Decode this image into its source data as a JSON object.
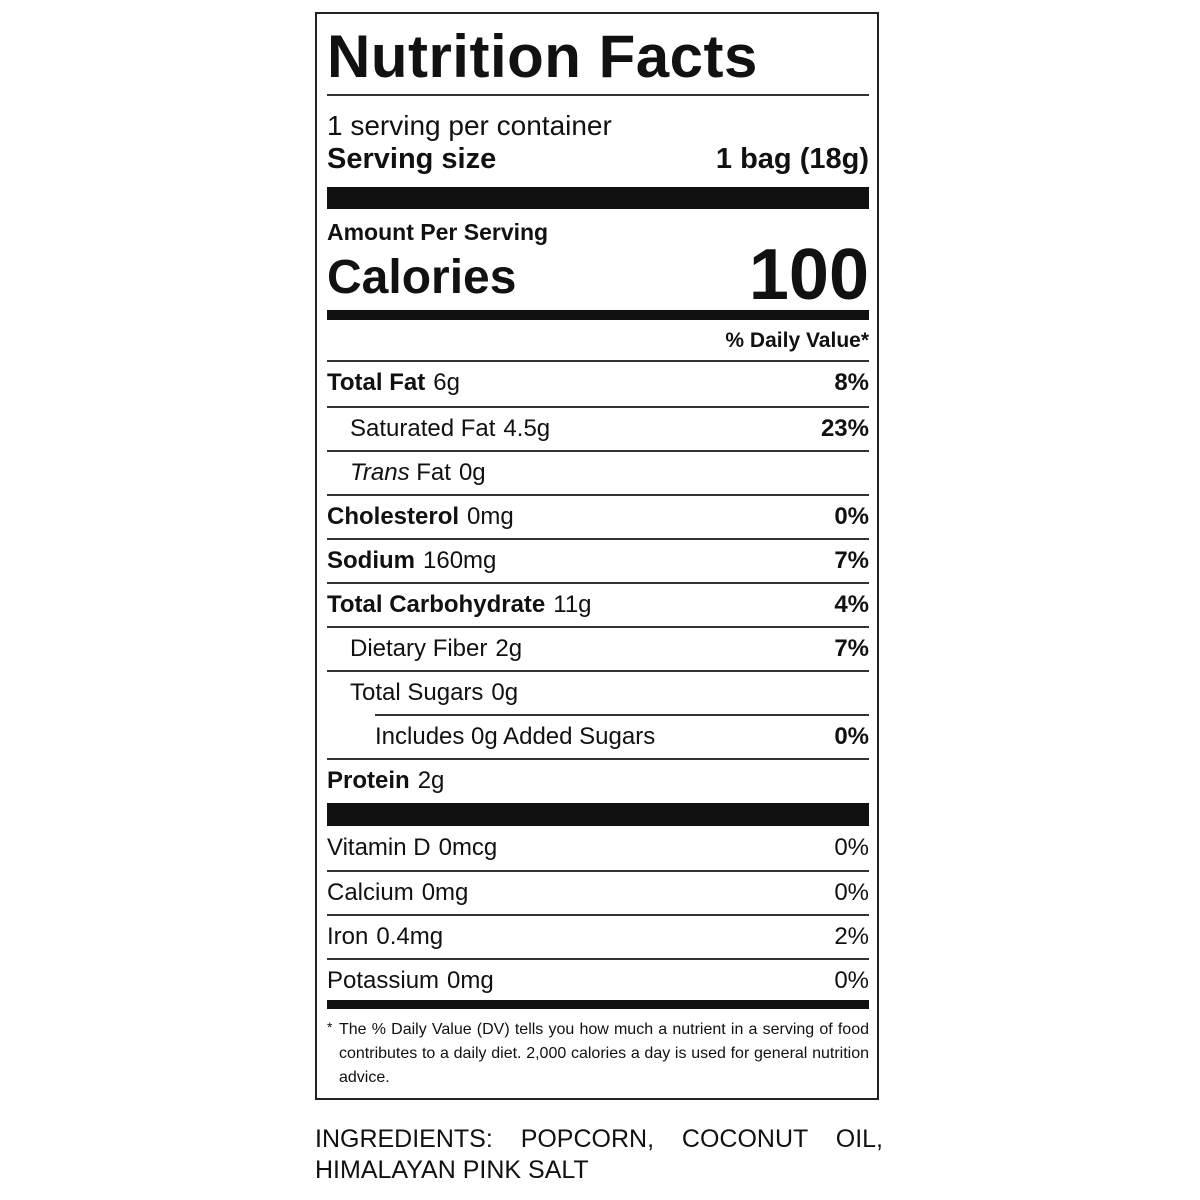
{
  "label": {
    "title": "Nutrition Facts",
    "servings": "1 serving per container",
    "serving_size": {
      "label": "Serving size",
      "value": "1 bag (18g)"
    },
    "amount_per_serving": "Amount Per Serving",
    "calories": {
      "label": "Calories",
      "value": "100"
    },
    "dv_header": "% Daily Value*",
    "nutrients": [
      {
        "name": "Total Fat",
        "amount": "6g",
        "dv": "8%"
      },
      {
        "name": "Saturated Fat",
        "amount": "4.5g",
        "dv": "23%"
      },
      {
        "name_italic": "Trans",
        "name": "Fat",
        "amount": "0g"
      },
      {
        "name": "Cholesterol",
        "amount": "0mg",
        "dv": "0%"
      },
      {
        "name": "Sodium",
        "amount": "160mg",
        "dv": "7%"
      },
      {
        "name": "Total Carbohydrate",
        "amount": "11g",
        "dv": "4%"
      },
      {
        "name": "Dietary Fiber",
        "amount": "2g",
        "dv": "7%"
      },
      {
        "name": "Total Sugars",
        "amount": "0g"
      },
      {
        "name": "Includes 0g Added Sugars",
        "dv": "0%"
      },
      {
        "name": "Protein",
        "amount": "2g"
      }
    ],
    "vitamins": [
      {
        "name": "Vitamin D",
        "amount": "0mcg",
        "dv": "0%"
      },
      {
        "name": "Calcium",
        "amount": "0mg",
        "dv": "0%"
      },
      {
        "name": "Iron",
        "amount": "0.4mg",
        "dv": "2%"
      },
      {
        "name": "Potassium",
        "amount": "0mg",
        "dv": "0%"
      }
    ],
    "footnote_mark": "*",
    "footnote": "The % Daily Value (DV) tells you how much a nutrient in a serving of food contributes to a daily diet. 2,000 calories a day is used for general nutrition advice."
  },
  "ingredients": "INGREDIENTS: POPCORN, COCONUT OIL, HIMALAYAN PINK SALT"
}
